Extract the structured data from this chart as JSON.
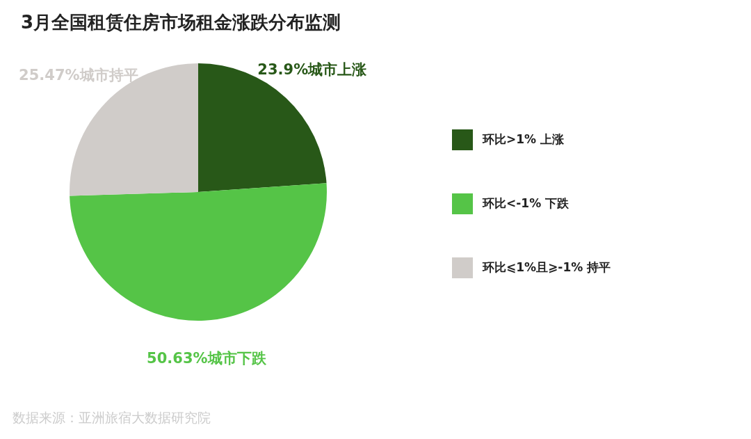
{
  "chart_data": {
    "type": "pie",
    "title": "3月全国租赁住房市场租金涨跌分布监测",
    "categories": [
      "环比>1% 上涨",
      "环比<-1% 下跌",
      "环比⩽1%且⩾-1% 持平"
    ],
    "values": [
      23.9,
      50.63,
      25.47
    ],
    "colors": [
      "#285818",
      "#55c447",
      "#d0ccc9"
    ],
    "value_labels": [
      "23.9%城市上涨",
      "50.63%城市下跌",
      "25.47%城市持平"
    ],
    "legend": "right",
    "annotations": [
      "数据来源：亚洲旅宿大数据研究院"
    ]
  }
}
